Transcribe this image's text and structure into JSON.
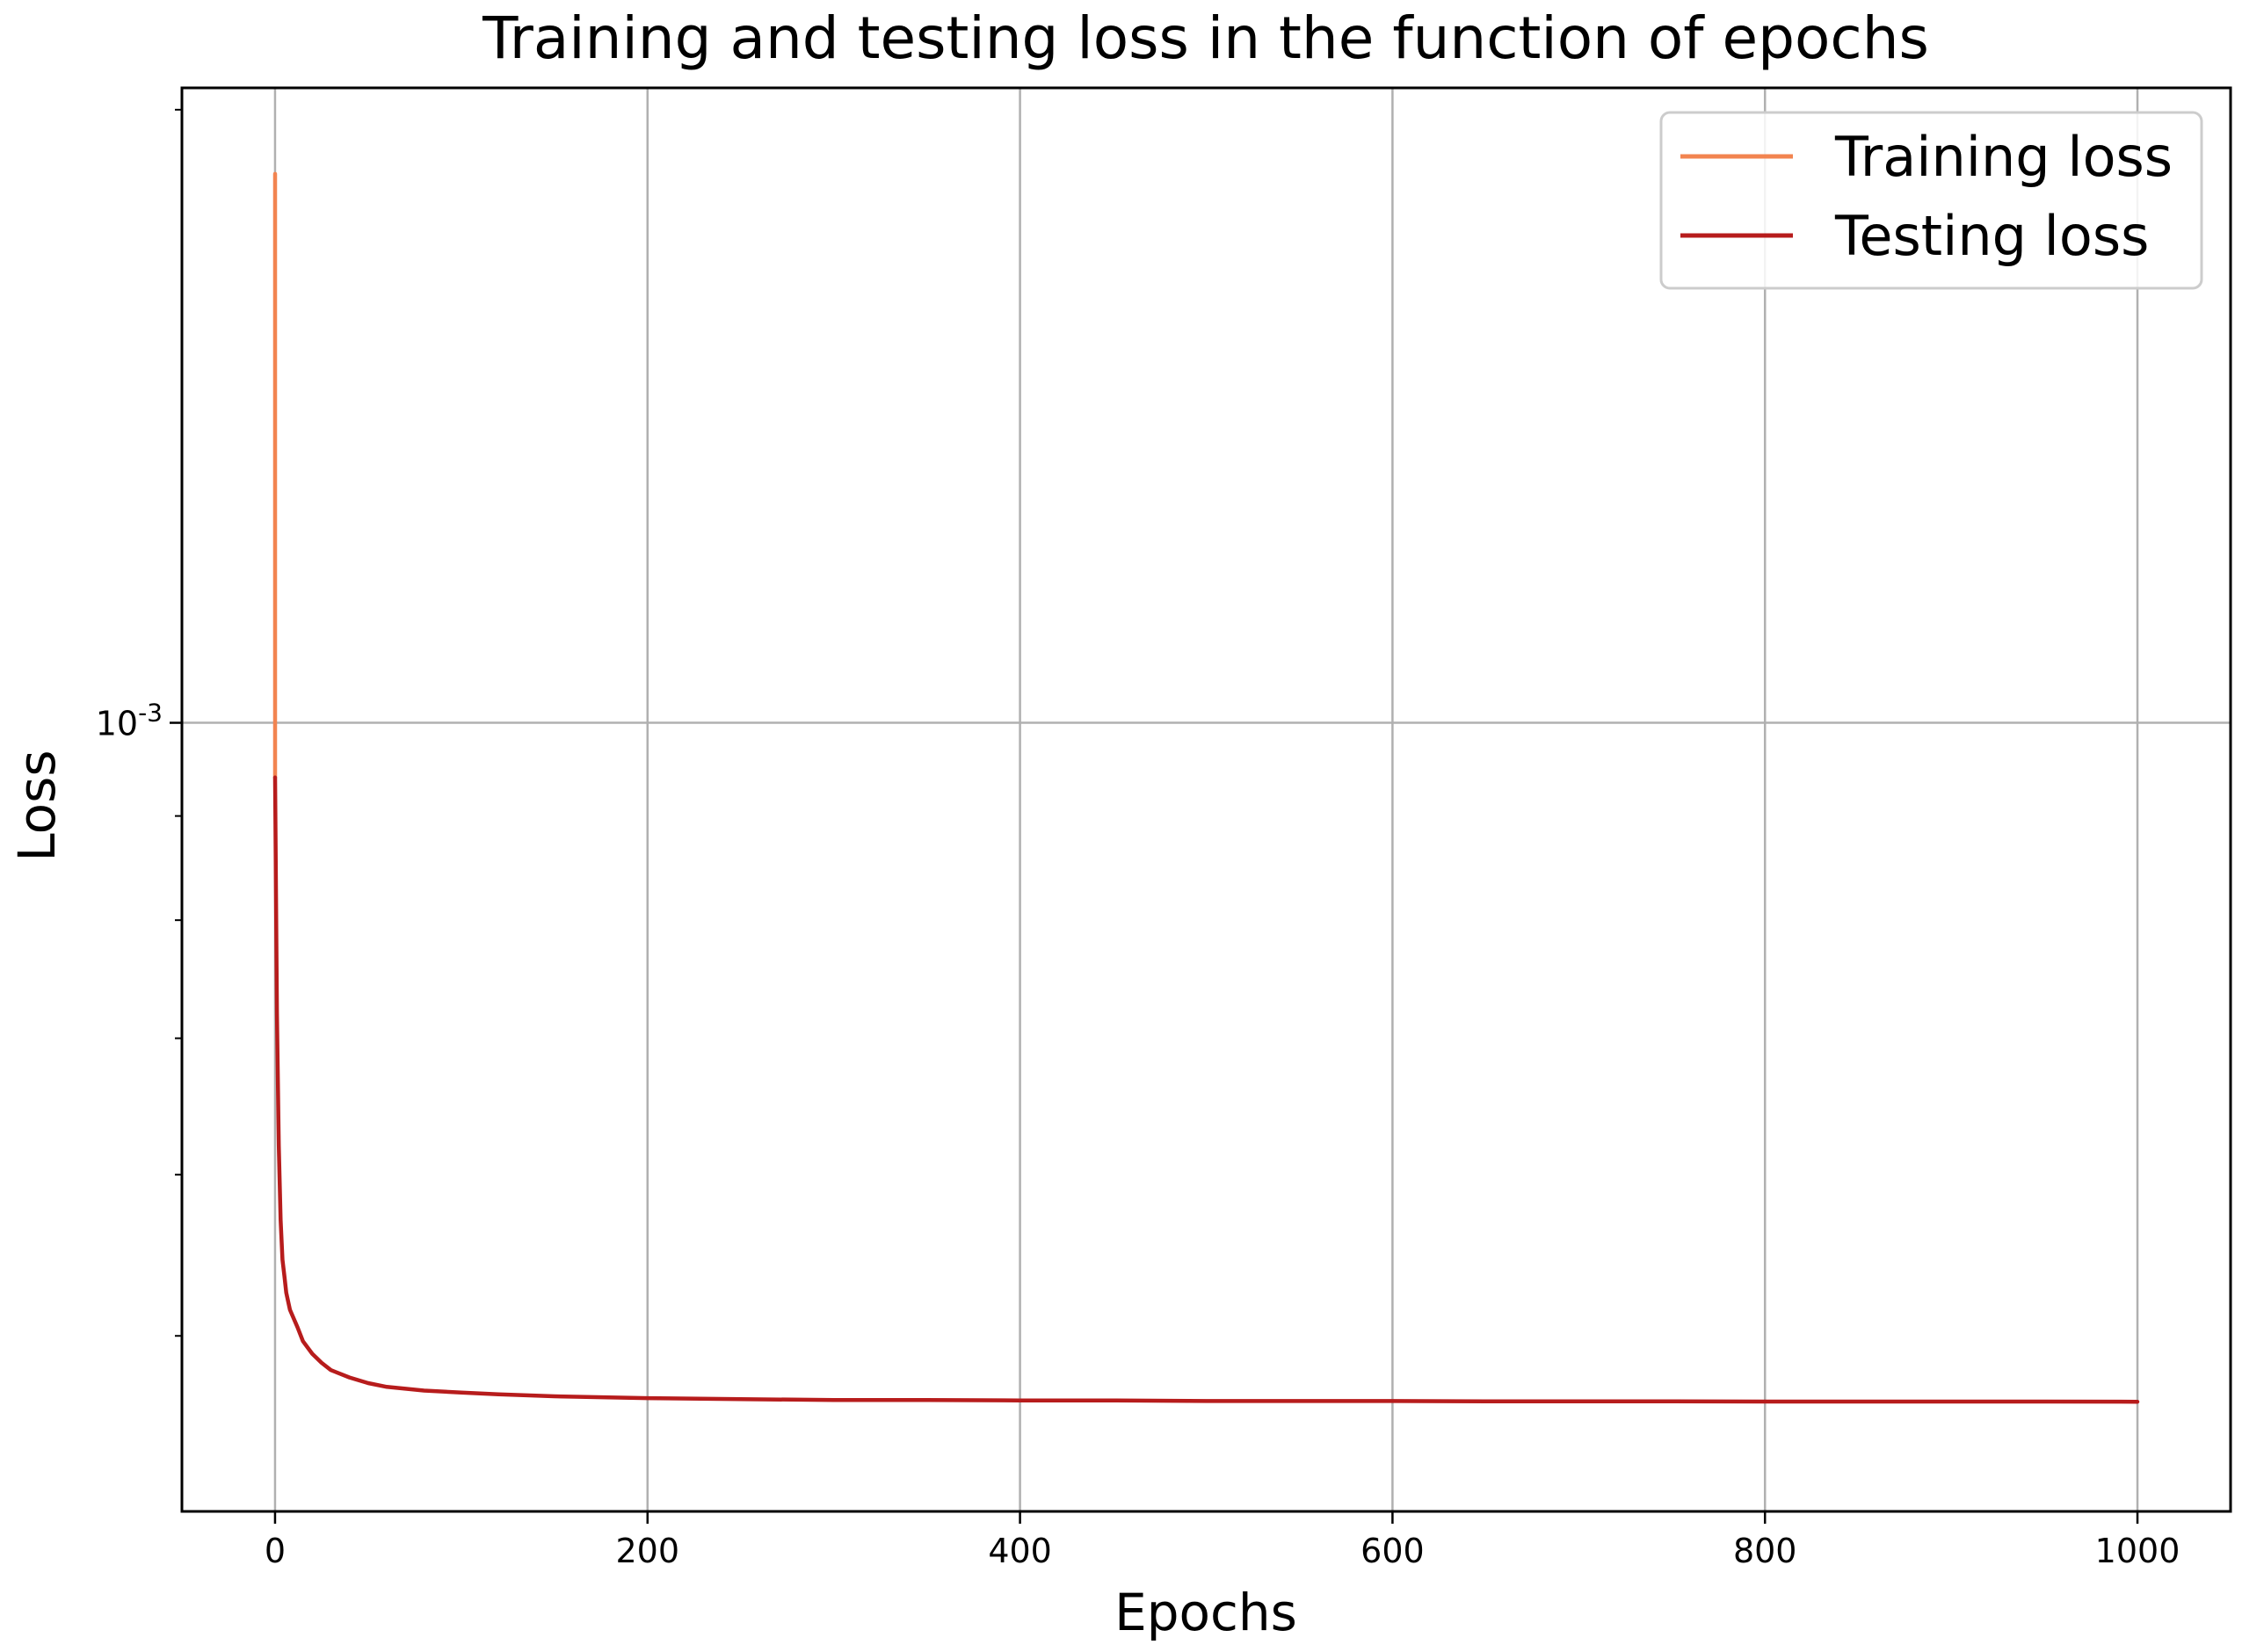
{
  "chart_data": {
    "type": "line",
    "title": "Training and testing loss in the function of epochs",
    "xlabel": "Epochs",
    "ylabel": "Loss",
    "xlim": [
      -50,
      1050
    ],
    "ylim": [
      0.00041,
      0.00205
    ],
    "yscale": "log",
    "grid": true,
    "legend_position": "top-right",
    "x_ticks": [
      {
        "value": 0,
        "label": "0"
      },
      {
        "value": 200,
        "label": "200"
      },
      {
        "value": 400,
        "label": "400"
      },
      {
        "value": 600,
        "label": "600"
      },
      {
        "value": 800,
        "label": "800"
      },
      {
        "value": 1000,
        "label": "1000"
      }
    ],
    "y_major_ticks": [
      {
        "value": 0.001,
        "label_base": "10",
        "label_exp": "-3"
      }
    ],
    "y_minor_ticks": [
      0.0005,
      0.0006,
      0.0007,
      0.0008,
      0.0009,
      0.002
    ],
    "series": [
      {
        "name": "Training loss",
        "color": "#f28450",
        "x": [
          0,
          0
        ],
        "y": [
          0.00186,
          0.00094
        ]
      },
      {
        "name": "Testing loss",
        "color": "#b71c1c",
        "x": [
          0,
          1,
          2,
          3,
          4,
          5,
          6,
          8,
          10,
          12,
          15,
          20,
          25,
          30,
          40,
          50,
          60,
          80,
          100,
          120,
          150,
          200,
          250,
          300,
          350,
          400,
          450,
          500,
          550,
          600,
          650,
          700,
          750,
          800,
          850,
          900,
          950,
          1000
        ],
        "y": [
          0.00094,
          0.00072,
          0.00062,
          0.00057,
          0.000545,
          0.000535,
          0.000525,
          0.000515,
          0.00051,
          0.000505,
          0.000497,
          0.00049,
          0.000485,
          0.000481,
          0.000477,
          0.000474,
          0.000472,
          0.00047,
          0.000469,
          0.000468,
          0.000467,
          0.000466,
          0.0004655,
          0.000465,
          0.000465,
          0.0004648,
          0.0004648,
          0.0004645,
          0.0004645,
          0.0004645,
          0.0004643,
          0.0004643,
          0.0004643,
          0.0004642,
          0.0004642,
          0.0004642,
          0.0004642,
          0.0004641
        ]
      }
    ]
  }
}
